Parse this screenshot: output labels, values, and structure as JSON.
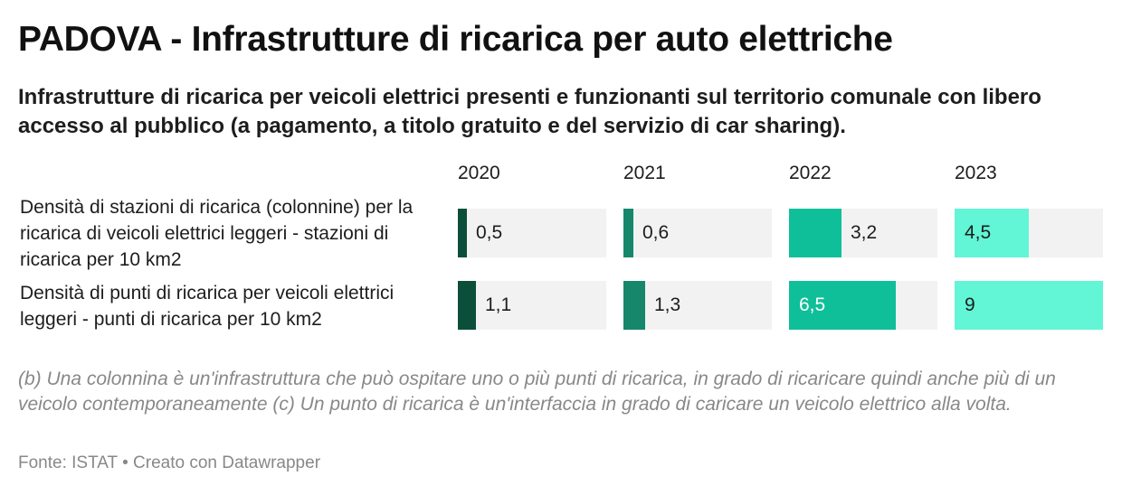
{
  "title": "PADOVA - Infrastrutture di ricarica per auto elettriche",
  "subtitle": "Infrastrutture di ricarica per veicoli elettrici presenti e funzionanti sul territorio comunale con libero accesso al pubblico (a pagamento, a titolo gratuito e del servizio di car sharing).",
  "notes": "(b) Una colonnina è un'infrastruttura che può ospitare uno o più punti di ricarica, in grado di ricaricare quindi anche più di un veicolo contemporaneamente (c) Un punto di ricarica è un'interfaccia in grado di caricare un veicolo elettrico alla volta.",
  "source": "Fonte: ISTAT • Creato con Datawrapper",
  "colors": {
    "2020": "#0b4f3a",
    "2021": "#16876b",
    "2022": "#0fbf9a",
    "2023": "#62f5d6",
    "track": "#f2f2f2"
  },
  "chart_data": {
    "type": "bar",
    "columns": [
      "2020",
      "2021",
      "2022",
      "2023"
    ],
    "rows": [
      {
        "label": "Densità di stazioni di ricarica (colonnine) per la ricarica di veicoli elettrici leggeri - stazioni di ricarica per 10 km2",
        "values": [
          0.5,
          0.6,
          3.2,
          4.5
        ],
        "labels": [
          "0,5",
          "0,6",
          "3,2",
          "4,5"
        ]
      },
      {
        "label": "Densità di punti di ricarica per veicoli elettrici leggeri - punti di ricarica per 10 km2",
        "values": [
          1.1,
          1.3,
          6.5,
          9
        ],
        "labels": [
          "1,1",
          "1,3",
          "6,5",
          "9"
        ]
      }
    ],
    "xlim": [
      0,
      9
    ]
  }
}
